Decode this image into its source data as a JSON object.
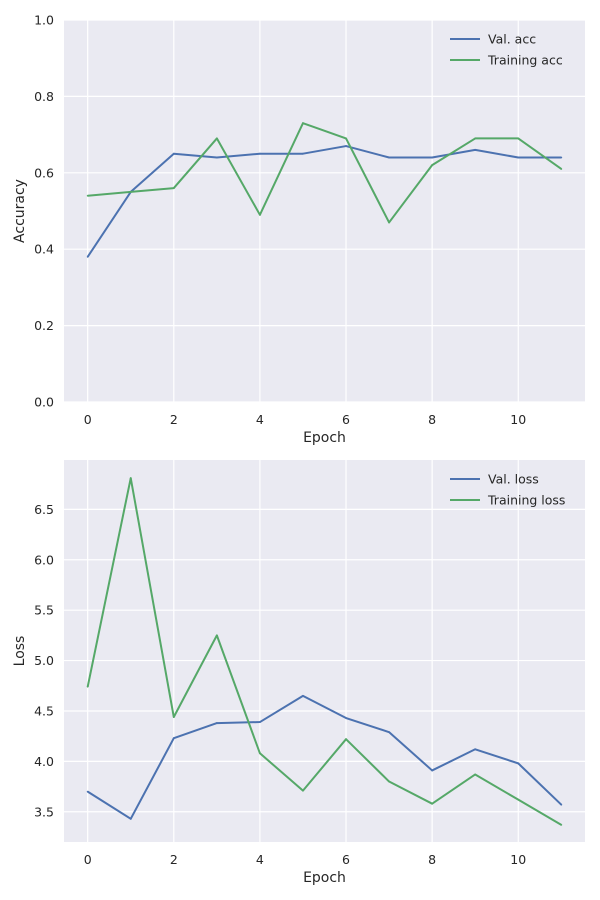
{
  "chart_data": [
    {
      "type": "line",
      "title": "",
      "xlabel": "Epoch",
      "ylabel": "Accuracy",
      "xlim": [
        -0.55,
        11.55
      ],
      "ylim": [
        0.0,
        1.0
      ],
      "grid": true,
      "legend_position": "top-right",
      "x": [
        0,
        1,
        2,
        3,
        4,
        5,
        6,
        7,
        8,
        9,
        10,
        11
      ],
      "x_ticks": [
        0,
        2,
        4,
        6,
        8,
        10
      ],
      "x_tick_labels": [
        "0",
        "2",
        "4",
        "6",
        "8",
        "10"
      ],
      "y_ticks": [
        0.0,
        0.2,
        0.4,
        0.6,
        0.8,
        1.0
      ],
      "y_tick_labels": [
        "0.0",
        "0.2",
        "0.4",
        "0.6",
        "0.8",
        "1.0"
      ],
      "series": [
        {
          "name": "Val. acc",
          "color": "#4c72b0",
          "values": [
            0.38,
            0.55,
            0.65,
            0.64,
            0.65,
            0.65,
            0.67,
            0.64,
            0.64,
            0.66,
            0.64,
            0.64
          ]
        },
        {
          "name": "Training acc",
          "color": "#55a868",
          "values": [
            0.54,
            0.55,
            0.56,
            0.69,
            0.49,
            0.73,
            0.69,
            0.47,
            0.62,
            0.69,
            0.69,
            0.61
          ]
        }
      ]
    },
    {
      "type": "line",
      "title": "",
      "xlabel": "Epoch",
      "ylabel": "Loss",
      "xlim": [
        -0.55,
        11.55
      ],
      "ylim": [
        3.2,
        6.99
      ],
      "grid": true,
      "legend_position": "top-right",
      "x": [
        0,
        1,
        2,
        3,
        4,
        5,
        6,
        7,
        8,
        9,
        10,
        11
      ],
      "x_ticks": [
        0,
        2,
        4,
        6,
        8,
        10
      ],
      "x_tick_labels": [
        "0",
        "2",
        "4",
        "6",
        "8",
        "10"
      ],
      "y_ticks": [
        3.5,
        4.0,
        4.5,
        5.0,
        5.5,
        6.0,
        6.5
      ],
      "y_tick_labels": [
        "3.5",
        "4.0",
        "4.5",
        "5.0",
        "5.5",
        "6.0",
        "6.5"
      ],
      "series": [
        {
          "name": "Val. loss",
          "color": "#4c72b0",
          "values": [
            3.7,
            3.43,
            4.23,
            4.38,
            4.39,
            4.65,
            4.43,
            4.29,
            3.91,
            4.12,
            3.98,
            3.57
          ]
        },
        {
          "name": "Training loss",
          "color": "#55a868",
          "values": [
            4.74,
            6.81,
            4.44,
            5.25,
            4.08,
            3.71,
            4.22,
            3.8,
            3.58,
            3.87,
            3.62,
            3.37
          ]
        }
      ]
    }
  ],
  "style": {
    "panel_background": "#eaeaf2",
    "grid_color": "#ffffff",
    "text_color": "#262626"
  }
}
